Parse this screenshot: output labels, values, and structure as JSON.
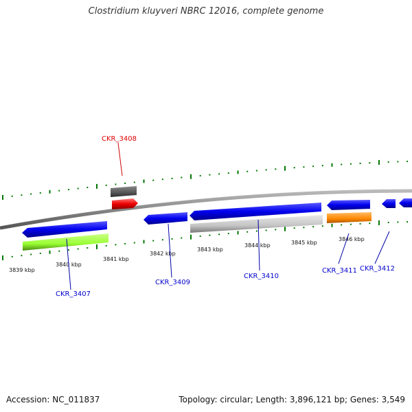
{
  "title": "Clostridium kluyveri NBRC 12016, complete genome",
  "footer": {
    "accession": "Accession: NC_011837",
    "summary": "Topology: circular; Length: 3,896,121 bp; Genes: 3,549"
  },
  "ticks": [
    "3839 kbp",
    "3840 kbp",
    "3841 kbp",
    "3842 kbp",
    "3843 kbp",
    "3844 kbp",
    "3845 kbp",
    "3846 kbp"
  ],
  "genes": [
    {
      "label": "CKR_3407",
      "color": "#0000cc"
    },
    {
      "label": "CKR_3408",
      "color": "#dd0000"
    },
    {
      "label": "CKR_3409",
      "color": "#0000cc"
    },
    {
      "label": "CKR_3410",
      "color": "#0000cc"
    },
    {
      "label": "CKR_3411",
      "color": "#0000cc"
    },
    {
      "label": "CKR_3412",
      "color": "#0000cc"
    }
  ],
  "colors": {
    "forward_gene": "#0000ee",
    "backbone": "#888888",
    "tick": "#007700",
    "green_feature": "#99ff33",
    "gray_feature": "#cccccc",
    "dark_feature": "#555555",
    "red_feature": "#ee0000",
    "orange_feature": "#ff8800"
  }
}
